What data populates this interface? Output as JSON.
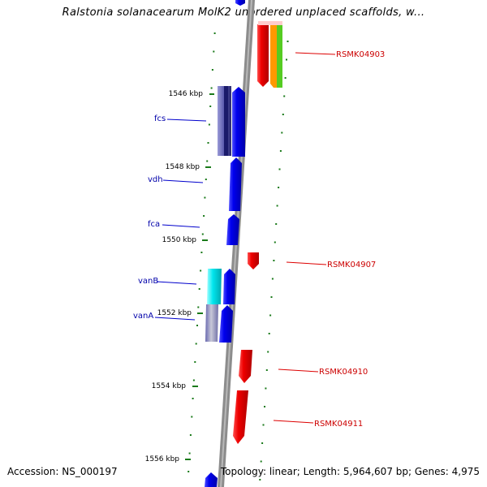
{
  "title": "Ralstonia solanacearum MolK2 unordered unplaced scaffolds, w...",
  "footer": {
    "accession": "Accession: NS_000197",
    "summary": "Topology: linear; Length: 5,964,607 bp; Genes: 4,975"
  },
  "colors": {
    "backbone": "#8c8c8c",
    "tick": "#1a7a1a",
    "gene_blue": "#0000ee",
    "gene_red": "#ee0000",
    "label_blue": "#0000aa",
    "label_red": "#cc0000"
  },
  "scale": {
    "unit": "kbp",
    "labels": [
      "1546 kbp",
      "1548 kbp",
      "1550 kbp",
      "1552 kbp",
      "1554 kbp",
      "1556 kbp"
    ]
  },
  "left_genes": [
    "fcs",
    "vdh",
    "fca",
    "vanB",
    "vanA"
  ],
  "right_genes": [
    "RSMK04903",
    "RSMK04907",
    "RSMK04910",
    "RSMK04911"
  ]
}
